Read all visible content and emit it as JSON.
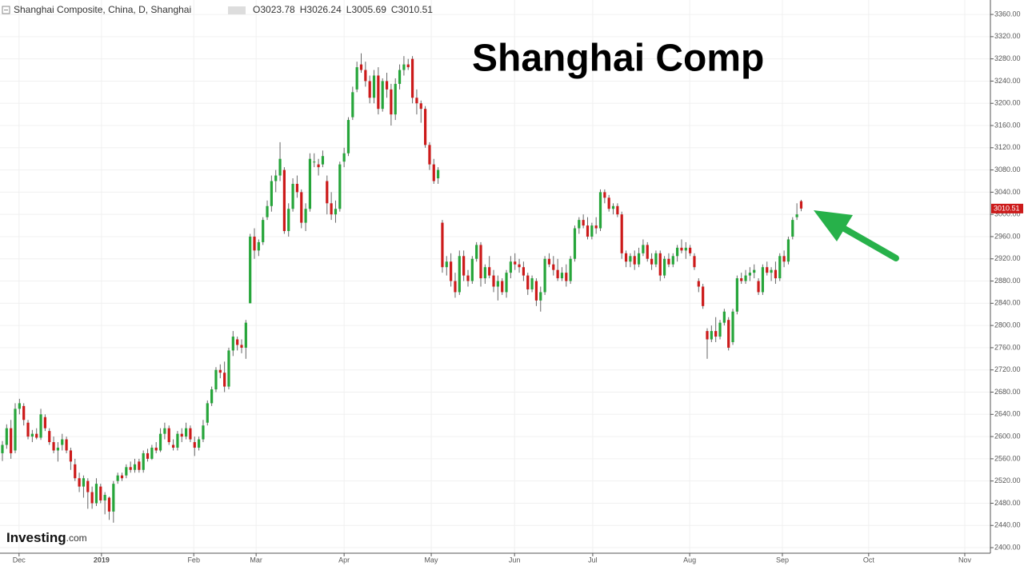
{
  "chart_data": {
    "type": "candlestick",
    "symbol": "Shanghai Composite, China, D, Shanghai",
    "title": "Shanghai Comp",
    "watermark": "Investing",
    "watermark_suffix": ".com",
    "ohlc_labels": [
      "O",
      "H",
      "L",
      "C"
    ],
    "up_color": "#26a53a",
    "down_color": "#cc1a1a",
    "grid": true,
    "xlim": [
      -0.56,
      231.3
    ],
    "xticks": [
      {
        "value": 3.9,
        "label": "Dec"
      },
      {
        "value": 23.2,
        "label": "2019"
      },
      {
        "value": 44.8,
        "label": "Feb"
      },
      {
        "value": 59.4,
        "label": "Mar"
      },
      {
        "value": 80,
        "label": "Apr"
      },
      {
        "value": 100.4,
        "label": "May"
      },
      {
        "value": 119.9,
        "label": "Jun"
      },
      {
        "value": 138.2,
        "label": "Jul"
      },
      {
        "value": 160.9,
        "label": "Aug"
      },
      {
        "value": 182.6,
        "label": "Sep"
      },
      {
        "value": 202.8,
        "label": "Oct"
      },
      {
        "value": 225.3,
        "label": "Nov"
      }
    ],
    "ylim": [
      2390,
      3386
    ],
    "yticks": [
      {
        "value": 2400,
        "label": "2400.00"
      },
      {
        "value": 2440,
        "label": "2440.00"
      },
      {
        "value": 2480,
        "label": "2480.00"
      },
      {
        "value": 2520,
        "label": "2520.00"
      },
      {
        "value": 2560,
        "label": "2560.00"
      },
      {
        "value": 2600,
        "label": "2600.00"
      },
      {
        "value": 2640,
        "label": "2640.00"
      },
      {
        "value": 2680,
        "label": "2680.00"
      },
      {
        "value": 2720,
        "label": "2720.00"
      },
      {
        "value": 2760,
        "label": "2760.00"
      },
      {
        "value": 2800,
        "label": "2800.00"
      },
      {
        "value": 2840,
        "label": "2840.00"
      },
      {
        "value": 2880,
        "label": "2880.00"
      },
      {
        "value": 2920,
        "label": "2920.00"
      },
      {
        "value": 2960,
        "label": "2960.00"
      },
      {
        "value": 3000,
        "label": "3000.00"
      },
      {
        "value": 3040,
        "label": "3040.00"
      },
      {
        "value": 3080,
        "label": "3080.00"
      },
      {
        "value": 3120,
        "label": "3120.00"
      },
      {
        "value": 3160,
        "label": "3160.00"
      },
      {
        "value": 3200,
        "label": "3200.00"
      },
      {
        "value": 3240,
        "label": "3240.00"
      },
      {
        "value": 3280,
        "label": "3280.00"
      },
      {
        "value": 3320,
        "label": "3320.00"
      },
      {
        "value": 3360,
        "label": "3360.00"
      }
    ],
    "candles": [
      [
        2570,
        2592,
        2556,
        2585
      ],
      [
        2585,
        2622,
        2578,
        2615
      ],
      [
        2615,
        2630,
        2560,
        2570
      ],
      [
        2575,
        2660,
        2570,
        2650
      ],
      [
        2650,
        2668,
        2640,
        2660
      ],
      [
        2655,
        2660,
        2620,
        2630
      ],
      [
        2625,
        2630,
        2595,
        2600
      ],
      [
        2600,
        2612,
        2590,
        2605
      ],
      [
        2605,
        2615,
        2595,
        2598
      ],
      [
        2598,
        2650,
        2594,
        2640
      ],
      [
        2635,
        2640,
        2610,
        2615
      ],
      [
        2610,
        2615,
        2585,
        2590
      ],
      [
        2590,
        2600,
        2570,
        2575
      ],
      [
        2575,
        2590,
        2555,
        2580
      ],
      [
        2585,
        2605,
        2575,
        2595
      ],
      [
        2595,
        2600,
        2570,
        2575
      ],
      [
        2575,
        2580,
        2540,
        2555
      ],
      [
        2550,
        2560,
        2520,
        2525
      ],
      [
        2525,
        2535,
        2500,
        2510
      ],
      [
        2510,
        2530,
        2490,
        2525
      ],
      [
        2520,
        2525,
        2470,
        2500
      ],
      [
        2500,
        2510,
        2470,
        2480
      ],
      [
        2480,
        2525,
        2475,
        2515
      ],
      [
        2510,
        2515,
        2480,
        2485
      ],
      [
        2485,
        2500,
        2460,
        2495
      ],
      [
        2490,
        2492,
        2450,
        2465
      ],
      [
        2465,
        2520,
        2445,
        2515
      ],
      [
        2520,
        2535,
        2515,
        2530
      ],
      [
        2530,
        2535,
        2520,
        2525
      ],
      [
        2530,
        2550,
        2525,
        2545
      ],
      [
        2545,
        2555,
        2535,
        2540
      ],
      [
        2540,
        2560,
        2535,
        2550
      ],
      [
        2555,
        2560,
        2535,
        2540
      ],
      [
        2540,
        2575,
        2535,
        2570
      ],
      [
        2570,
        2578,
        2555,
        2560
      ],
      [
        2560,
        2585,
        2558,
        2580
      ],
      [
        2580,
        2590,
        2570,
        2575
      ],
      [
        2575,
        2615,
        2572,
        2605
      ],
      [
        2605,
        2625,
        2595,
        2615
      ],
      [
        2615,
        2620,
        2585,
        2590
      ],
      [
        2585,
        2595,
        2575,
        2580
      ],
      [
        2580,
        2610,
        2575,
        2605
      ],
      [
        2605,
        2615,
        2590,
        2600
      ],
      [
        2600,
        2625,
        2595,
        2615
      ],
      [
        2615,
        2620,
        2590,
        2595
      ],
      [
        2590,
        2600,
        2565,
        2580
      ],
      [
        2580,
        2600,
        2575,
        2595
      ],
      [
        2595,
        2630,
        2590,
        2620
      ],
      [
        2625,
        2665,
        2620,
        2660
      ],
      [
        2660,
        2690,
        2655,
        2685
      ],
      [
        2685,
        2725,
        2680,
        2720
      ],
      [
        2720,
        2730,
        2705,
        2715
      ],
      [
        2715,
        2735,
        2680,
        2690
      ],
      [
        2690,
        2760,
        2685,
        2755
      ],
      [
        2755,
        2790,
        2745,
        2780
      ],
      [
        2775,
        2780,
        2755,
        2765
      ],
      [
        2765,
        2775,
        2750,
        2760
      ],
      [
        2760,
        2810,
        2740,
        2805
      ],
      [
        2840,
        2965,
        2840,
        2960
      ],
      [
        2960,
        2975,
        2920,
        2935
      ],
      [
        2935,
        2955,
        2925,
        2950
      ],
      [
        2950,
        2995,
        2945,
        2990
      ],
      [
        2995,
        3025,
        2990,
        3015
      ],
      [
        3015,
        3070,
        3005,
        3060
      ],
      [
        3060,
        3080,
        3040,
        3070
      ],
      [
        3070,
        3130,
        3060,
        3100
      ],
      [
        3080,
        3085,
        2965,
        2970
      ],
      [
        2970,
        3020,
        2960,
        3010
      ],
      [
        3010,
        3065,
        3005,
        3055
      ],
      [
        3055,
        3070,
        3030,
        3040
      ],
      [
        3040,
        3045,
        2975,
        2985
      ],
      [
        2985,
        3020,
        2970,
        3010
      ],
      [
        3010,
        3110,
        3005,
        3100
      ],
      [
        3095,
        3110,
        3085,
        3095
      ],
      [
        3090,
        3100,
        3070,
        3085
      ],
      [
        3090,
        3115,
        3085,
        3105
      ],
      [
        3060,
        3070,
        3000,
        3020
      ],
      [
        3020,
        3040,
        2990,
        3000
      ],
      [
        3000,
        3025,
        2985,
        3010
      ],
      [
        3010,
        3095,
        3005,
        3090
      ],
      [
        3095,
        3120,
        3085,
        3110
      ],
      [
        3110,
        3175,
        3105,
        3170
      ],
      [
        3175,
        3230,
        3170,
        3220
      ],
      [
        3225,
        3275,
        3220,
        3265
      ],
      [
        3270,
        3290,
        3255,
        3260
      ],
      [
        3260,
        3275,
        3230,
        3240
      ],
      [
        3240,
        3250,
        3200,
        3210
      ],
      [
        3210,
        3260,
        3200,
        3250
      ],
      [
        3250,
        3265,
        3180,
        3190
      ],
      [
        3190,
        3245,
        3185,
        3240
      ],
      [
        3240,
        3255,
        3210,
        3225
      ],
      [
        3225,
        3235,
        3160,
        3180
      ],
      [
        3180,
        3245,
        3170,
        3235
      ],
      [
        3235,
        3270,
        3225,
        3260
      ],
      [
        3260,
        3285,
        3250,
        3270
      ],
      [
        3270,
        3280,
        3260,
        3265
      ],
      [
        3280,
        3285,
        3200,
        3210
      ],
      [
        3210,
        3225,
        3180,
        3200
      ],
      [
        3200,
        3205,
        3165,
        3190
      ],
      [
        3190,
        3195,
        3120,
        3125
      ],
      [
        3125,
        3130,
        3080,
        3090
      ],
      [
        3090,
        3100,
        3055,
        3060
      ],
      [
        3065,
        3085,
        3055,
        3080
      ],
      [
        2985,
        2990,
        2895,
        2905
      ],
      [
        2905,
        2925,
        2890,
        2915
      ],
      [
        2915,
        2930,
        2870,
        2880
      ],
      [
        2880,
        2895,
        2850,
        2860
      ],
      [
        2860,
        2935,
        2855,
        2925
      ],
      [
        2925,
        2935,
        2880,
        2890
      ],
      [
        2890,
        2900,
        2870,
        2880
      ],
      [
        2880,
        2925,
        2875,
        2920
      ],
      [
        2920,
        2950,
        2915,
        2945
      ],
      [
        2945,
        2950,
        2870,
        2885
      ],
      [
        2885,
        2910,
        2875,
        2905
      ],
      [
        2905,
        2925,
        2885,
        2890
      ],
      [
        2890,
        2900,
        2860,
        2870
      ],
      [
        2870,
        2890,
        2845,
        2880
      ],
      [
        2880,
        2885,
        2855,
        2860
      ],
      [
        2860,
        2900,
        2850,
        2895
      ],
      [
        2895,
        2925,
        2885,
        2915
      ],
      [
        2915,
        2930,
        2900,
        2910
      ],
      [
        2910,
        2920,
        2895,
        2905
      ],
      [
        2905,
        2915,
        2880,
        2890
      ],
      [
        2890,
        2895,
        2855,
        2865
      ],
      [
        2865,
        2890,
        2860,
        2885
      ],
      [
        2880,
        2885,
        2835,
        2845
      ],
      [
        2845,
        2870,
        2825,
        2860
      ],
      [
        2860,
        2925,
        2855,
        2920
      ],
      [
        2920,
        2930,
        2905,
        2910
      ],
      [
        2910,
        2925,
        2890,
        2900
      ],
      [
        2900,
        2920,
        2880,
        2885
      ],
      [
        2885,
        2905,
        2880,
        2895
      ],
      [
        2895,
        2910,
        2870,
        2880
      ],
      [
        2880,
        2925,
        2875,
        2920
      ],
      [
        2920,
        2980,
        2915,
        2975
      ],
      [
        2975,
        2995,
        2965,
        2990
      ],
      [
        2990,
        3000,
        2975,
        2980
      ],
      [
        2980,
        2995,
        2955,
        2960
      ],
      [
        2960,
        2985,
        2955,
        2980
      ],
      [
        2980,
        2995,
        2965,
        2975
      ],
      [
        2975,
        3045,
        2970,
        3040
      ],
      [
        3040,
        3045,
        3020,
        3030
      ],
      [
        3030,
        3035,
        3005,
        3010
      ],
      [
        3010,
        3020,
        3000,
        3015
      ],
      [
        3015,
        3020,
        2995,
        3000
      ],
      [
        3000,
        3005,
        2920,
        2930
      ],
      [
        2930,
        2935,
        2905,
        2915
      ],
      [
        2915,
        2930,
        2905,
        2925
      ],
      [
        2925,
        2935,
        2900,
        2910
      ],
      [
        2910,
        2940,
        2905,
        2930
      ],
      [
        2930,
        2955,
        2925,
        2945
      ],
      [
        2945,
        2950,
        2915,
        2920
      ],
      [
        2920,
        2930,
        2900,
        2910
      ],
      [
        2910,
        2935,
        2905,
        2930
      ],
      [
        2930,
        2935,
        2880,
        2890
      ],
      [
        2890,
        2925,
        2885,
        2920
      ],
      [
        2920,
        2930,
        2905,
        2910
      ],
      [
        2910,
        2930,
        2905,
        2925
      ],
      [
        2925,
        2945,
        2915,
        2940
      ],
      [
        2940,
        2955,
        2930,
        2935
      ],
      [
        2935,
        2950,
        2920,
        2940
      ],
      [
        2940,
        2945,
        2925,
        2930
      ],
      [
        2925,
        2930,
        2900,
        2905
      ],
      [
        2880,
        2885,
        2860,
        2870
      ],
      [
        2870,
        2875,
        2830,
        2835
      ],
      [
        2790,
        2795,
        2740,
        2775
      ],
      [
        2775,
        2800,
        2770,
        2790
      ],
      [
        2790,
        2815,
        2770,
        2780
      ],
      [
        2780,
        2810,
        2775,
        2805
      ],
      [
        2805,
        2830,
        2800,
        2825
      ],
      [
        2810,
        2815,
        2755,
        2760
      ],
      [
        2770,
        2830,
        2765,
        2825
      ],
      [
        2825,
        2890,
        2820,
        2885
      ],
      [
        2885,
        2895,
        2875,
        2880
      ],
      [
        2880,
        2900,
        2875,
        2890
      ],
      [
        2890,
        2905,
        2880,
        2895
      ],
      [
        2895,
        2910,
        2885,
        2900
      ],
      [
        2880,
        2885,
        2855,
        2860
      ],
      [
        2860,
        2910,
        2855,
        2905
      ],
      [
        2905,
        2915,
        2890,
        2895
      ],
      [
        2895,
        2905,
        2880,
        2900
      ],
      [
        2900,
        2915,
        2875,
        2885
      ],
      [
        2885,
        2930,
        2880,
        2925
      ],
      [
        2925,
        2935,
        2905,
        2915
      ],
      [
        2915,
        2960,
        2910,
        2955
      ],
      [
        2960,
        2995,
        2955,
        2990
      ],
      [
        2995,
        3020,
        2990,
        3000
      ],
      [
        3023.78,
        3026.24,
        3005.69,
        3010.51
      ]
    ]
  }
}
